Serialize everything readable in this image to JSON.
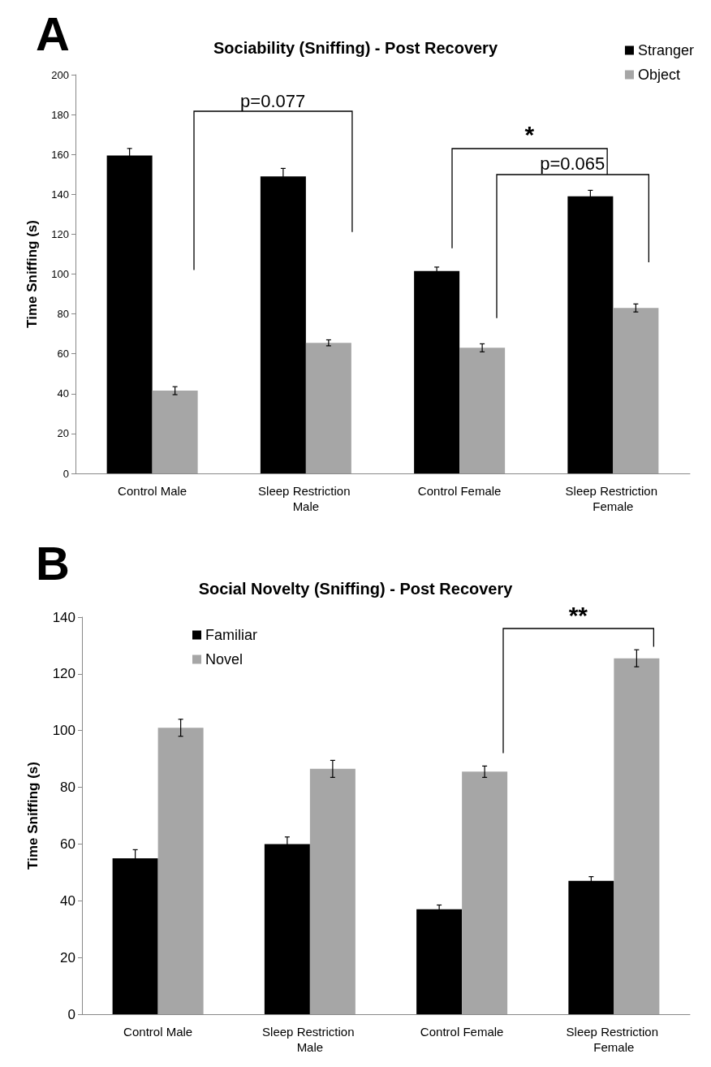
{
  "chart_data": [
    {
      "type": "bar",
      "title": "Sociability (Sniffing) - Post Recovery",
      "ylabel": "Time Sniffing (s)",
      "categories": [
        "Control Male",
        "Sleep Restriction Male",
        "Control Female",
        "Sleep Restriction Female"
      ],
      "series": [
        {
          "name": "Stranger",
          "color": "#000000",
          "values": [
            159.5,
            149,
            101.5,
            139
          ],
          "errors": [
            3.5,
            4,
            2,
            3
          ]
        },
        {
          "name": "Object",
          "color": "#a6a6a6",
          "values": [
            41.5,
            65.5,
            63,
            83
          ],
          "errors": [
            2,
            1.5,
            2,
            2
          ]
        }
      ],
      "ylim": [
        0,
        200
      ],
      "yticks": [
        0,
        20,
        40,
        60,
        80,
        100,
        120,
        140,
        160,
        180,
        200
      ],
      "legend": "top right",
      "annotations": [
        "A",
        "p=0.077",
        "*",
        "p=0.065"
      ]
    },
    {
      "type": "bar",
      "title": "Social Novelty (Sniffing) - Post Recovery",
      "ylabel": "Time Sniffing (s)",
      "categories": [
        "Control Male",
        "Sleep Restriction Male",
        "Control Female",
        "Sleep Restriction Female"
      ],
      "series": [
        {
          "name": "Familiar",
          "color": "#000000",
          "values": [
            55,
            60,
            37,
            47
          ],
          "errors": [
            3,
            2.5,
            1.5,
            1.5
          ]
        },
        {
          "name": "Novel",
          "color": "#a6a6a6",
          "values": [
            101,
            86.5,
            85.5,
            125.5
          ],
          "errors": [
            3,
            3,
            2,
            3
          ]
        }
      ],
      "ylim": [
        0,
        140
      ],
      "yticks": [
        0,
        20,
        40,
        60,
        80,
        100,
        120,
        140
      ],
      "legend": "top left",
      "annotations": [
        "B",
        "**"
      ]
    }
  ]
}
